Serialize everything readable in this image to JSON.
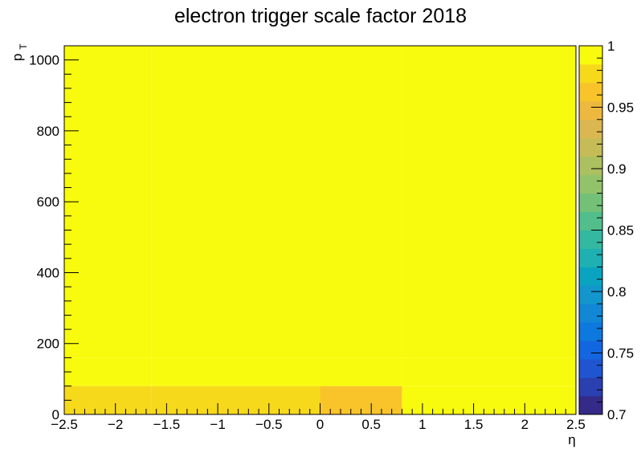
{
  "chart_data": {
    "type": "heatmap",
    "title": "electron trigger scale factor 2018",
    "xlabel": "η",
    "ylabel_main": "p",
    "ylabel_sub": "T",
    "xlim": [
      -2.5,
      2.5
    ],
    "ylim": [
      0,
      1040
    ],
    "zlim": [
      0.7,
      1.0
    ],
    "x_ticks": [
      -2.5,
      -2,
      -1.5,
      -1,
      -0.5,
      0,
      0.5,
      1,
      1.5,
      2,
      2.5
    ],
    "x_tick_labels": [
      "−2.5",
      "−2",
      "−1.5",
      "−1",
      "−0.5",
      "0",
      "0.5",
      "1",
      "1.5",
      "2",
      "2.5"
    ],
    "y_ticks": [
      0,
      200,
      400,
      600,
      800,
      1000
    ],
    "y_tick_labels": [
      "0",
      "200",
      "400",
      "600",
      "800",
      "1000"
    ],
    "z_ticks": [
      0.7,
      0.75,
      0.8,
      0.85,
      0.9,
      0.95,
      1.0
    ],
    "z_tick_labels": [
      "0.7",
      "0.75",
      "0.8",
      "0.85",
      "0.9",
      "0.95",
      "1"
    ],
    "x_bin_edges": [
      -2.5,
      -1.65,
      0,
      0.8,
      2.5
    ],
    "y_bin_edges": [
      0,
      80,
      160,
      1040
    ],
    "cells": [
      [
        0.983,
        0.983,
        0.968,
        0.995
      ],
      [
        0.995,
        0.985,
        0.995,
        0.988
      ],
      [
        0.995,
        0.995,
        0.995,
        0.995
      ]
    ],
    "palette": [
      "#352a87",
      "#2a3fb0",
      "#1f55d0",
      "#1266e0",
      "#0d78de",
      "#1187d6",
      "#1296cc",
      "#0aa4c1",
      "#1fb0b2",
      "#34b8a0",
      "#52be8b",
      "#73c177",
      "#92c26a",
      "#acc060",
      "#c5bc58",
      "#dab750",
      "#edb83e",
      "#f9c42a",
      "#f7d91c",
      "#f9fb0e"
    ],
    "grid": false,
    "legend": "colorbar-right"
  }
}
